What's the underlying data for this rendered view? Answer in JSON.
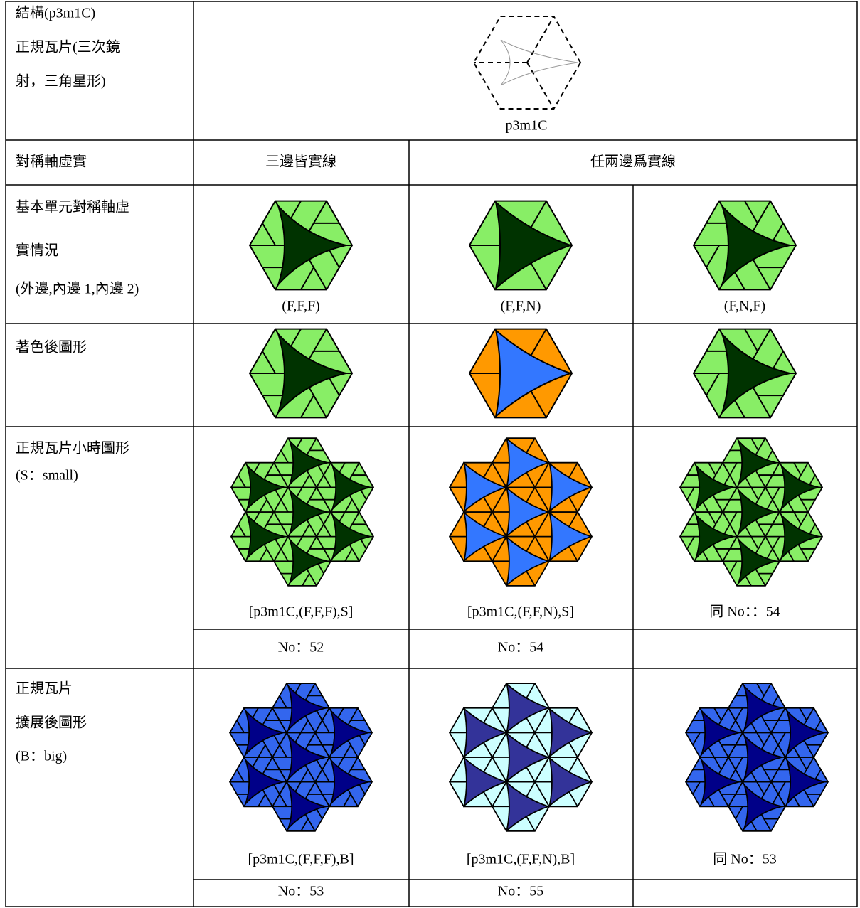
{
  "structure": {
    "label_lines": [
      "結構(p3m1C)",
      "正規瓦片(三次鏡",
      "射，三角星形)"
    ],
    "figure_caption": "p3m1C"
  },
  "axis_row": {
    "label": "對稱軸虛實",
    "headers": [
      "三邊皆實線",
      "任兩邊爲實線"
    ]
  },
  "unit_row": {
    "label_lines": [
      "基本單元對稱軸虛",
      "實情況",
      "(外邊,內邊 1,內邊 2)"
    ],
    "captions": [
      "(F,F,F)",
      "(F,F,N)",
      "(F,N,F)"
    ]
  },
  "colored_row": {
    "label": "著色後圖形"
  },
  "small_row": {
    "label_lines": [
      "正規瓦片小時圖形",
      "(S：small)"
    ],
    "captions": [
      "[p3m1C,(F,F,F),S]",
      "[p3m1C,(F,F,N),S]",
      "同 No：：54"
    ],
    "numbers": [
      "No：52",
      "No：54"
    ]
  },
  "big_row": {
    "label_lines": [
      "正規瓦片",
      "擴展後圖形",
      "(B：big)"
    ],
    "captions": [
      "[p3m1C,(F,F,F),B]",
      "[p3m1C,(F,F,N),B]",
      "同 No：53"
    ],
    "numbers": [
      "No：53",
      "No：55"
    ]
  }
}
